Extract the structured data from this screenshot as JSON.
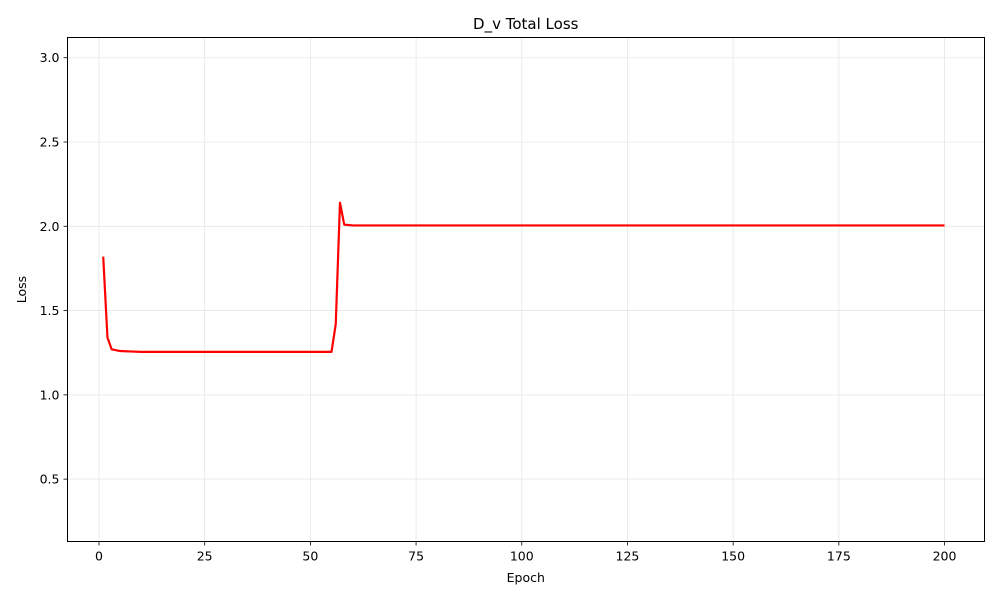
{
  "chart_data": {
    "type": "line",
    "title": "D_v Total Loss",
    "xlabel": "Epoch",
    "ylabel": "Loss",
    "xlim": [
      -7.45,
      209.45
    ],
    "ylim": [
      0.13,
      3.12
    ],
    "x_ticks": [
      0,
      25,
      50,
      75,
      100,
      125,
      150,
      175,
      200
    ],
    "y_ticks": [
      0.5,
      1.0,
      1.5,
      2.0,
      2.5,
      3.0
    ],
    "x_tick_labels": [
      "0",
      "25",
      "50",
      "75",
      "100",
      "125",
      "150",
      "175",
      "200"
    ],
    "y_tick_labels": [
      "0.5",
      "1.0",
      "1.5",
      "2.0",
      "2.5",
      "3.0"
    ],
    "grid": true,
    "series": [
      {
        "color": "#ff0000",
        "x": [
          1,
          2,
          3,
          5,
          10,
          20,
          30,
          40,
          50,
          55,
          56,
          57,
          58,
          60,
          80,
          100,
          120,
          140,
          160,
          180,
          200
        ],
        "values": [
          1.82,
          1.34,
          1.27,
          1.26,
          1.255,
          1.255,
          1.255,
          1.255,
          1.255,
          1.255,
          1.42,
          2.14,
          2.01,
          2.005,
          2.005,
          2.005,
          2.005,
          2.005,
          2.005,
          2.005,
          2.005
        ]
      }
    ]
  }
}
